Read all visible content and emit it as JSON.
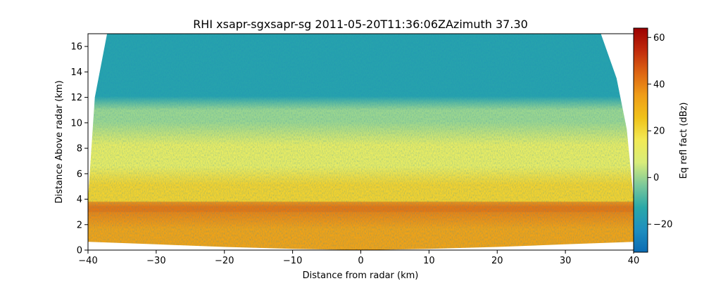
{
  "chart_data": {
    "type": "heatmap",
    "title": "RHI xsapr-sgxsapr-sg 2011-05-20T11:36:06ZAzimuth 37.30",
    "xlabel": "Distance from radar (km)",
    "ylabel": "Distance Above radar  (km)",
    "xlim": [
      -40,
      40
    ],
    "ylim": [
      0,
      17
    ],
    "x_ticks": [
      -40,
      -30,
      -20,
      -10,
      0,
      10,
      20,
      30,
      40
    ],
    "x_tick_labels": [
      "−40",
      "−30",
      "−20",
      "−10",
      "0",
      "10",
      "20",
      "30",
      "40"
    ],
    "y_ticks": [
      0,
      2,
      4,
      6,
      8,
      10,
      12,
      14,
      16
    ],
    "y_tick_labels": [
      "0",
      "2",
      "4",
      "6",
      "8",
      "10",
      "12",
      "14",
      "16"
    ],
    "colorbar": {
      "label": "Eq refl fact (dBz)",
      "range": [
        -32,
        64
      ],
      "ticks": [
        -20,
        0,
        20,
        40,
        60
      ],
      "tick_labels": [
        "−20",
        "0",
        "20",
        "40",
        "60"
      ],
      "colormap": [
        "#0b6bb3",
        "#1f8fbf",
        "#2aa8a8",
        "#7cc99a",
        "#d8ec7a",
        "#f2ea55",
        "#f0c21a",
        "#ef9d18",
        "#dd6512",
        "#c02a0c",
        "#9b0000"
      ]
    },
    "layers": [
      {
        "z_range_km": [
          0.3,
          3.0
        ],
        "reflectivity_dbz": 34
      },
      {
        "z_range_km": [
          3.0,
          3.8
        ],
        "reflectivity_dbz": 40
      },
      {
        "z_range_km": [
          3.8,
          6.5
        ],
        "reflectivity_dbz": 22
      },
      {
        "z_range_km": [
          6.5,
          10.0
        ],
        "reflectivity_dbz": 12
      },
      {
        "z_range_km": [
          10.0,
          12.0
        ],
        "reflectivity_dbz": 0
      },
      {
        "z_range_km": [
          12.0,
          17.0
        ],
        "reflectivity_dbz": -15
      }
    ],
    "grid": false
  }
}
